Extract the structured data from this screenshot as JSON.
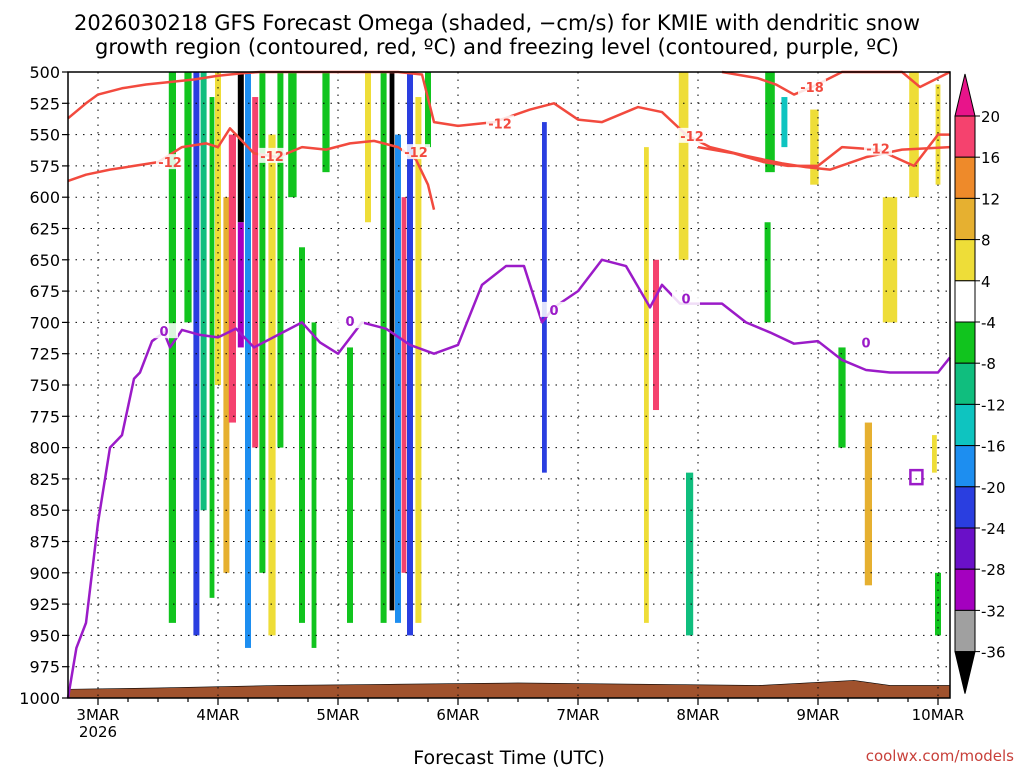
{
  "chart_data": {
    "type": "heatmap",
    "title": [
      "2026030218 GFS Forecast Omega (shaded, −cm/s) for KMIE with dendritic snow",
      "growth region (contoured, red, ºC) and freezing level (contoured, purple, ºC)"
    ],
    "xlabel": "Forecast Time (UTC)",
    "credit": "coolwx.com/models",
    "x_range": [
      2.75,
      10.1
    ],
    "y_range": [
      500,
      1000
    ],
    "y_ticks": [
      "500",
      "525",
      "550",
      "575",
      "600",
      "625",
      "650",
      "675",
      "700",
      "725",
      "750",
      "775",
      "800",
      "825",
      "850",
      "875",
      "900",
      "925",
      "950",
      "975",
      "1000"
    ],
    "x_ticks": [
      {
        "x": 3,
        "label": "3MAR",
        "sub": "2026"
      },
      {
        "x": 4,
        "label": "4MAR",
        "sub": ""
      },
      {
        "x": 5,
        "label": "5MAR",
        "sub": ""
      },
      {
        "x": 6,
        "label": "6MAR",
        "sub": ""
      },
      {
        "x": 7,
        "label": "7MAR",
        "sub": ""
      },
      {
        "x": 8,
        "label": "8MAR",
        "sub": ""
      },
      {
        "x": 9,
        "label": "9MAR",
        "sub": ""
      },
      {
        "x": 10,
        "label": "10MAR",
        "sub": ""
      }
    ],
    "grid": true,
    "colorbar": {
      "labels": [
        "20",
        "16",
        "12",
        "8",
        "4",
        "-4",
        "-8",
        "-12",
        "-16",
        "-20",
        "-24",
        "-28",
        "-32",
        "-36"
      ],
      "colors": [
        "#f5426e",
        "#ee8a2a",
        "#e6b030",
        "#eedd38",
        "#ffffff",
        "#11c41e",
        "#10be7e",
        "#0ec4c0",
        "#1d8ef0",
        "#2a3ee0",
        "#6a10c8",
        "#a400bf",
        "#a0a0a0"
      ]
    },
    "shading": [
      {
        "x": 3.62,
        "w": 0.06,
        "p0": 500,
        "p1": 940,
        "c": "#11c41e"
      },
      {
        "x": 3.75,
        "w": 0.06,
        "p0": 500,
        "p1": 700,
        "c": "#11c41e"
      },
      {
        "x": 3.82,
        "w": 0.05,
        "p0": 500,
        "p1": 950,
        "c": "#2a3ee0"
      },
      {
        "x": 3.88,
        "w": 0.05,
        "p0": 500,
        "p1": 850,
        "c": "#10be7e"
      },
      {
        "x": 3.95,
        "w": 0.04,
        "p0": 520,
        "p1": 920,
        "c": "#11c41e"
      },
      {
        "x": 4.0,
        "w": 0.05,
        "p0": 500,
        "p1": 750,
        "c": "#eedd38"
      },
      {
        "x": 4.07,
        "w": 0.05,
        "p0": 600,
        "p1": 900,
        "c": "#e6b030"
      },
      {
        "x": 4.12,
        "w": 0.06,
        "p0": 550,
        "p1": 780,
        "c": "#f5426e"
      },
      {
        "x": 4.19,
        "w": 0.05,
        "p0": 500,
        "p1": 620,
        "c": "#000000"
      },
      {
        "x": 4.19,
        "w": 0.05,
        "p0": 620,
        "p1": 720,
        "c": "#a400bf"
      },
      {
        "x": 4.25,
        "w": 0.05,
        "p0": 500,
        "p1": 960,
        "c": "#1d8ef0"
      },
      {
        "x": 4.31,
        "w": 0.05,
        "p0": 520,
        "p1": 800,
        "c": "#f5426e"
      },
      {
        "x": 4.37,
        "w": 0.05,
        "p0": 500,
        "p1": 900,
        "c": "#11c41e"
      },
      {
        "x": 4.45,
        "w": 0.06,
        "p0": 550,
        "p1": 950,
        "c": "#eedd38"
      },
      {
        "x": 4.52,
        "w": 0.05,
        "p0": 500,
        "p1": 800,
        "c": "#11c41e"
      },
      {
        "x": 4.62,
        "w": 0.07,
        "p0": 500,
        "p1": 600,
        "c": "#11c41e"
      },
      {
        "x": 4.7,
        "w": 0.05,
        "p0": 640,
        "p1": 940,
        "c": "#11c41e"
      },
      {
        "x": 4.8,
        "w": 0.04,
        "p0": 700,
        "p1": 960,
        "c": "#11c41e"
      },
      {
        "x": 4.9,
        "w": 0.06,
        "p0": 500,
        "p1": 580,
        "c": "#11c41e"
      },
      {
        "x": 5.1,
        "w": 0.05,
        "p0": 720,
        "p1": 940,
        "c": "#11c41e"
      },
      {
        "x": 5.25,
        "w": 0.05,
        "p0": 500,
        "p1": 620,
        "c": "#eedd38"
      },
      {
        "x": 5.38,
        "w": 0.05,
        "p0": 500,
        "p1": 940,
        "c": "#11c41e"
      },
      {
        "x": 5.45,
        "w": 0.04,
        "p0": 500,
        "p1": 930,
        "c": "#000000"
      },
      {
        "x": 5.5,
        "w": 0.05,
        "p0": 550,
        "p1": 940,
        "c": "#1d8ef0"
      },
      {
        "x": 5.55,
        "w": 0.04,
        "p0": 600,
        "p1": 900,
        "c": "#f5426e"
      },
      {
        "x": 5.6,
        "w": 0.05,
        "p0": 500,
        "p1": 950,
        "c": "#2a3ee0"
      },
      {
        "x": 5.67,
        "w": 0.05,
        "p0": 520,
        "p1": 940,
        "c": "#eedd38"
      },
      {
        "x": 5.75,
        "w": 0.05,
        "p0": 500,
        "p1": 560,
        "c": "#11c41e"
      },
      {
        "x": 6.72,
        "w": 0.04,
        "p0": 540,
        "p1": 820,
        "c": "#2a3ee0"
      },
      {
        "x": 7.57,
        "w": 0.04,
        "p0": 560,
        "p1": 940,
        "c": "#eedd38"
      },
      {
        "x": 7.65,
        "w": 0.05,
        "p0": 650,
        "p1": 770,
        "c": "#f5426e"
      },
      {
        "x": 7.88,
        "w": 0.08,
        "p0": 500,
        "p1": 650,
        "c": "#eedd38"
      },
      {
        "x": 7.93,
        "w": 0.06,
        "p0": 820,
        "p1": 950,
        "c": "#10be7e"
      },
      {
        "x": 8.6,
        "w": 0.08,
        "p0": 500,
        "p1": 580,
        "c": "#11c41e"
      },
      {
        "x": 8.72,
        "w": 0.05,
        "p0": 520,
        "p1": 560,
        "c": "#0ec4c0"
      },
      {
        "x": 8.58,
        "w": 0.05,
        "p0": 620,
        "p1": 700,
        "c": "#11c41e"
      },
      {
        "x": 8.97,
        "w": 0.07,
        "p0": 530,
        "p1": 590,
        "c": "#eedd38"
      },
      {
        "x": 9.2,
        "w": 0.06,
        "p0": 720,
        "p1": 800,
        "c": "#11c41e"
      },
      {
        "x": 9.42,
        "w": 0.06,
        "p0": 780,
        "p1": 910,
        "c": "#e6b030"
      },
      {
        "x": 9.6,
        "w": 0.12,
        "p0": 600,
        "p1": 700,
        "c": "#eedd38"
      },
      {
        "x": 9.8,
        "w": 0.08,
        "p0": 500,
        "p1": 600,
        "c": "#eedd38"
      },
      {
        "x": 9.97,
        "w": 0.04,
        "p0": 790,
        "p1": 820,
        "c": "#eedd38"
      },
      {
        "x": 10.0,
        "w": 0.05,
        "p0": 900,
        "p1": 950,
        "c": "#11c41e"
      },
      {
        "x": 10.0,
        "w": 0.04,
        "p0": 510,
        "p1": 590,
        "c": "#eedd38"
      }
    ],
    "terrain": {
      "color": "#a0522d",
      "x": [
        2.75,
        3.5,
        4.5,
        5.5,
        6.5,
        7.5,
        8.5,
        9.3,
        9.6,
        10.1
      ],
      "p": [
        993,
        992,
        990,
        989,
        988,
        989,
        990,
        986,
        990,
        990
      ]
    },
    "series": [
      {
        "name": "-12",
        "color": "#f24a3e",
        "x": [
          2.75,
          2.9,
          3.0,
          3.2,
          3.4,
          3.6,
          3.8,
          4.0,
          4.2,
          4.35,
          4.6,
          4.9,
          5.2,
          5.5,
          5.7,
          5.8,
          6.0,
          6.3,
          6.6,
          6.8,
          7.0,
          7.2,
          7.5,
          7.7,
          7.9,
          8.1,
          8.4,
          8.7,
          8.9,
          9.1,
          9.4,
          9.7,
          10.1
        ],
        "p": [
          537,
          525,
          518,
          513,
          510,
          508,
          506,
          503,
          501,
          500,
          500,
          500,
          500,
          500,
          502,
          540,
          543,
          540,
          530,
          525,
          538,
          540,
          528,
          532,
          550,
          560,
          567,
          573,
          576,
          578,
          568,
          562,
          560
        ],
        "labels": [
          {
            "x": 6.35,
            "p": 541,
            "text": "-12"
          },
          {
            "x": 7.95,
            "p": 551,
            "text": "-12"
          }
        ]
      },
      {
        "name": "-12",
        "color": "#f24a3e",
        "x": [
          2.75,
          2.9,
          3.1,
          3.3,
          3.5,
          3.7,
          3.9,
          4.0,
          4.1,
          4.3,
          4.5,
          4.7,
          4.9,
          5.1,
          5.3,
          5.5,
          5.65,
          5.75,
          5.8
        ],
        "p": [
          587,
          582,
          578,
          575,
          572,
          560,
          557,
          560,
          545,
          565,
          568,
          560,
          562,
          557,
          555,
          560,
          570,
          590,
          610
        ],
        "labels": [
          {
            "x": 3.6,
            "p": 572,
            "text": "-12"
          },
          {
            "x": 4.45,
            "p": 567,
            "text": "-12"
          },
          {
            "x": 5.65,
            "p": 564,
            "text": "-12"
          }
        ]
      },
      {
        "name": "-12",
        "color": "#f24a3e",
        "x": [
          8.0,
          8.3,
          8.55,
          8.75,
          9.0,
          9.2,
          9.5,
          9.8,
          10.0,
          10.1
        ],
        "p": [
          560,
          565,
          572,
          575,
          575,
          560,
          562,
          575,
          550,
          550
        ],
        "labels": [
          {
            "x": 9.5,
            "p": 561,
            "text": "-12"
          }
        ]
      },
      {
        "name": "-18",
        "color": "#f24a3e",
        "x": [
          8.2,
          8.5,
          8.65,
          8.8,
          8.95,
          9.2,
          9.5,
          9.7,
          9.85,
          10.1
        ],
        "p": [
          500,
          505,
          510,
          518,
          512,
          500,
          500,
          500,
          512,
          500
        ],
        "labels": [
          {
            "x": 8.95,
            "p": 512,
            "text": "-18"
          }
        ]
      },
      {
        "name": "0",
        "color": "#9b1bc8",
        "x": [
          2.75,
          2.82,
          2.9,
          2.95,
          3.0,
          3.05,
          3.1,
          3.2,
          3.3,
          3.35,
          3.45,
          3.55,
          3.6,
          3.7,
          3.85,
          4.0,
          4.15,
          4.3,
          4.5,
          4.7,
          4.85,
          5.0,
          5.2,
          5.4,
          5.6,
          5.8,
          6.0,
          6.2,
          6.4,
          6.55,
          6.7,
          6.8,
          7.0,
          7.2,
          7.4,
          7.6,
          7.7,
          7.85,
          8.0,
          8.2,
          8.4,
          8.6,
          8.8,
          9.0,
          9.2,
          9.4,
          9.6,
          9.8,
          10.0,
          10.1
        ],
        "p": [
          1000,
          960,
          940,
          900,
          860,
          830,
          800,
          790,
          745,
          740,
          715,
          708,
          720,
          706,
          710,
          712,
          705,
          720,
          710,
          700,
          716,
          725,
          700,
          705,
          718,
          725,
          718,
          670,
          655,
          655,
          700,
          688,
          675,
          650,
          655,
          688,
          670,
          685,
          685,
          685,
          700,
          708,
          717,
          715,
          730,
          738,
          740,
          740,
          740,
          728
        ],
        "labels": [
          {
            "x": 3.55,
            "p": 707,
            "text": "0"
          },
          {
            "x": 5.1,
            "p": 699,
            "text": "0"
          },
          {
            "x": 6.8,
            "p": 690,
            "text": "0"
          },
          {
            "x": 7.9,
            "p": 681,
            "text": "0"
          },
          {
            "x": 9.4,
            "p": 716,
            "text": "0"
          }
        ]
      }
    ]
  }
}
